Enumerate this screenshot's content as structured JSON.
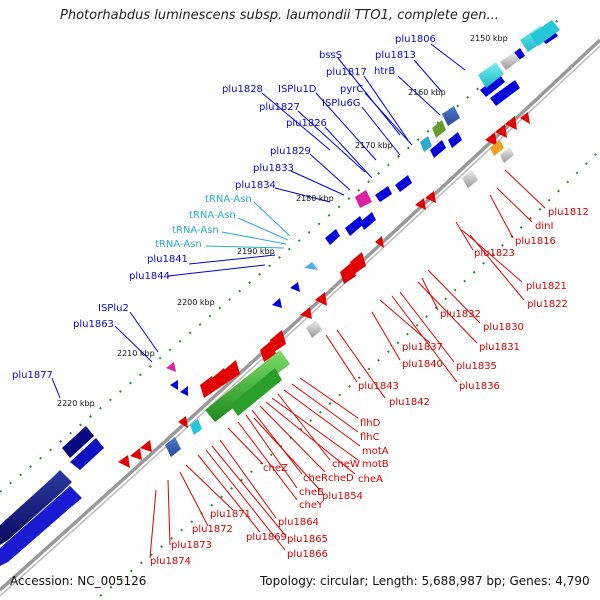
{
  "header": {
    "title": "Photorhabdus luminescens subsp. laumondii TTO1, complete gen..."
  },
  "footer": {
    "accession": "Accession: NC_005126",
    "topology": "Topology: circular; Length: 5,688,987 bp; Genes: 4,790"
  },
  "ticks": [
    "2150 kbp",
    "2160 kbp",
    "2170 kbp",
    "2180 kbp",
    "2190 kbp",
    "2200 kbp",
    "2210 kbp",
    "2220 kbp"
  ],
  "genes_forward": [
    "plu1806",
    "plu1813",
    "htrB",
    "bssS",
    "plu1817",
    "pyrC",
    "ISPlu6G",
    "plu1828",
    "ISPlu1D",
    "plu1827",
    "plu1826",
    "plu1829",
    "plu1833",
    "plu1834",
    "plu1841",
    "plu1844",
    "ISPlu2",
    "plu1863",
    "plu1877"
  ],
  "trnas": [
    "tRNA-Asn",
    "tRNA-Asn",
    "tRNA-Asn",
    "tRNA-Asn"
  ],
  "genes_reverse": [
    "plu1812",
    "dinI",
    "plu1816",
    "plu1821",
    "plu1823",
    "plu1822",
    "plu1830",
    "plu1832",
    "plu1831",
    "plu1835",
    "plu1836",
    "plu1837",
    "plu1840",
    "plu1843",
    "plu1842",
    "flhD",
    "flhC",
    "motA",
    "cheW",
    "motB",
    "cheA",
    "cheD",
    "cheR",
    "cheZ",
    "cheB",
    "plu1854",
    "cheY",
    "plu1864",
    "plu1865",
    "plu1866",
    "plu1869",
    "plu1871",
    "plu1872",
    "plu1873",
    "plu1874"
  ],
  "colors": {
    "forward": "#0000dd",
    "reverse": "#e00000",
    "trna": "#2aaad4",
    "backbone": "#888888",
    "tick": "#2a8a2a"
  }
}
